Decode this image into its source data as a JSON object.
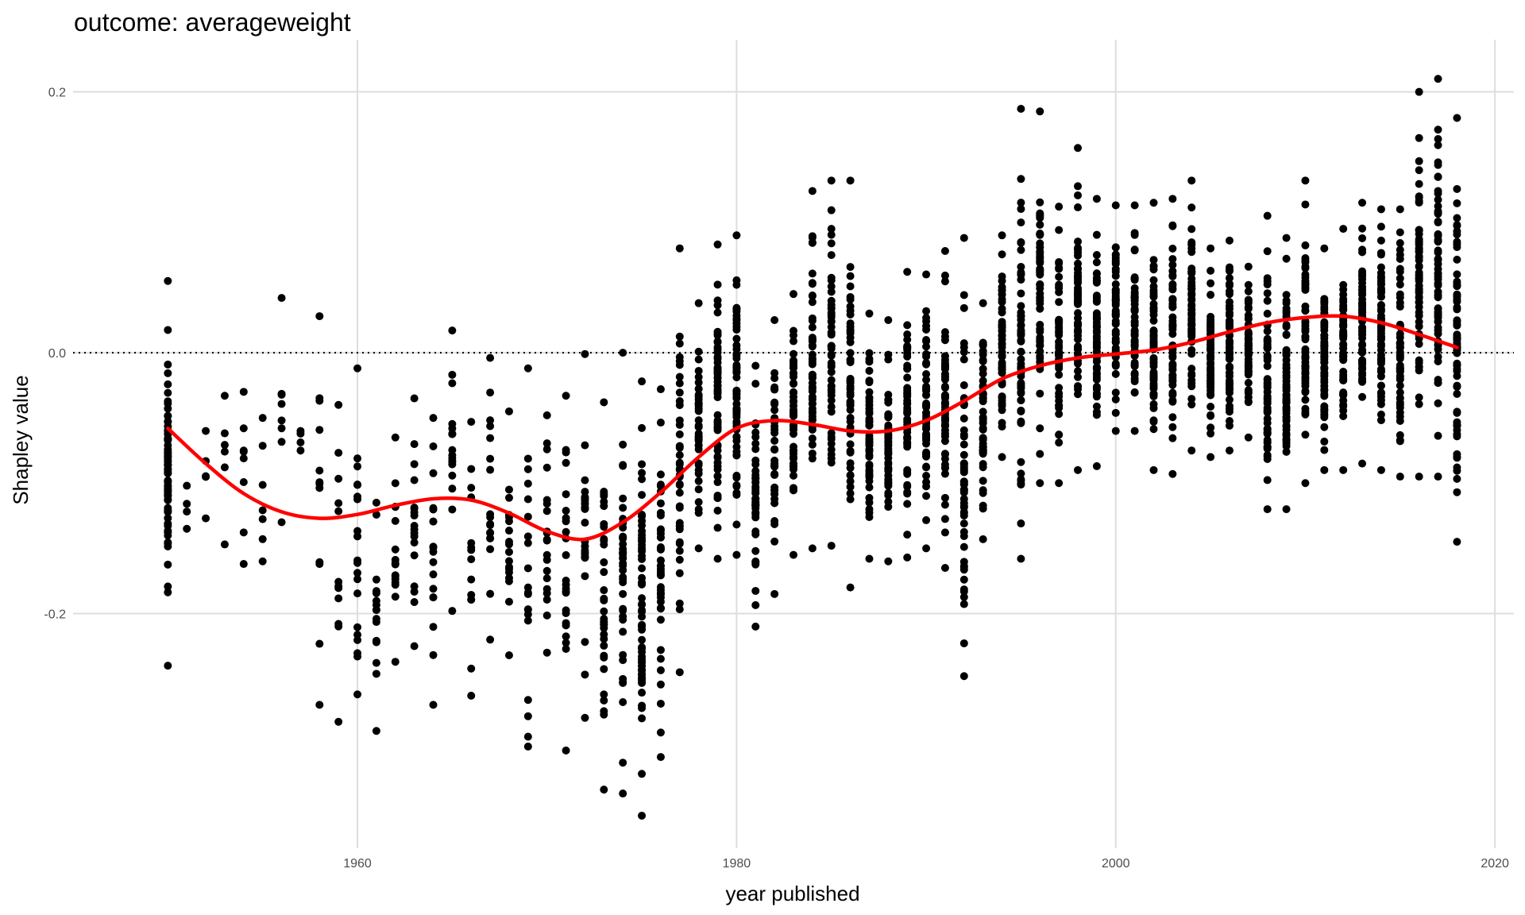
{
  "chart_data": {
    "type": "scatter",
    "title": "outcome: averageweight",
    "xlabel": "year published",
    "ylabel": "Shapley value",
    "xlim": [
      1945,
      2021
    ],
    "ylim": [
      -0.38,
      0.24
    ],
    "x_ticks": [
      1960,
      1980,
      2000,
      2020
    ],
    "x_tick_labels": [
      "1960",
      "1980",
      "2000",
      "2020"
    ],
    "y_ticks": [
      -0.2,
      0.0,
      0.2
    ],
    "y_tick_labels": [
      "-0.2",
      "0.0",
      "0.2"
    ],
    "grid": true,
    "reference_line": {
      "y": 0.0,
      "style": "dotted",
      "color": "#000000"
    },
    "colors": {
      "points": "#000000",
      "smooth": "#ff0000",
      "grid": "#dedede"
    },
    "series": [
      {
        "type": "scatter",
        "ranges_by_year": [
          [
            1950,
            -0.24,
            0.055,
            70
          ],
          [
            1951,
            -0.135,
            -0.102,
            2
          ],
          [
            1952,
            -0.127,
            -0.06,
            3
          ],
          [
            1953,
            -0.147,
            -0.033,
            4
          ],
          [
            1954,
            -0.162,
            -0.03,
            6
          ],
          [
            1955,
            -0.16,
            -0.05,
            5
          ],
          [
            1956,
            -0.13,
            0.042,
            6
          ],
          [
            1957,
            -0.075,
            -0.06,
            2
          ],
          [
            1958,
            -0.27,
            0.028,
            10
          ],
          [
            1959,
            -0.283,
            -0.04,
            10
          ],
          [
            1960,
            -0.262,
            -0.012,
            18
          ],
          [
            1961,
            -0.29,
            -0.115,
            14
          ],
          [
            1962,
            -0.237,
            -0.065,
            14
          ],
          [
            1963,
            -0.225,
            -0.035,
            16
          ],
          [
            1964,
            -0.27,
            -0.05,
            16
          ],
          [
            1965,
            -0.198,
            0.017,
            16
          ],
          [
            1966,
            -0.263,
            -0.053,
            12
          ],
          [
            1967,
            -0.22,
            -0.004,
            16
          ],
          [
            1968,
            -0.232,
            -0.045,
            16
          ],
          [
            1969,
            -0.302,
            -0.012,
            18
          ],
          [
            1970,
            -0.23,
            -0.048,
            18
          ],
          [
            1971,
            -0.305,
            -0.033,
            22
          ],
          [
            1972,
            -0.28,
            -0.001,
            24
          ],
          [
            1973,
            -0.335,
            -0.038,
            32
          ],
          [
            1974,
            -0.338,
            0.0,
            40
          ],
          [
            1975,
            -0.355,
            -0.022,
            60
          ],
          [
            1976,
            -0.31,
            -0.028,
            40
          ],
          [
            1977,
            -0.245,
            0.08,
            40
          ],
          [
            1978,
            -0.15,
            0.038,
            40
          ],
          [
            1979,
            -0.158,
            0.083,
            60
          ],
          [
            1980,
            -0.155,
            0.09,
            60
          ],
          [
            1981,
            -0.21,
            -0.01,
            45
          ],
          [
            1982,
            -0.185,
            0.025,
            40
          ],
          [
            1983,
            -0.155,
            0.045,
            50
          ],
          [
            1984,
            -0.15,
            0.124,
            50
          ],
          [
            1985,
            -0.148,
            0.132,
            50
          ],
          [
            1986,
            -0.18,
            0.132,
            50
          ],
          [
            1987,
            -0.158,
            0.03,
            50
          ],
          [
            1988,
            -0.16,
            0.025,
            50
          ],
          [
            1989,
            -0.157,
            0.062,
            50
          ],
          [
            1990,
            -0.15,
            0.06,
            55
          ],
          [
            1991,
            -0.165,
            0.078,
            55
          ],
          [
            1992,
            -0.248,
            0.088,
            55
          ],
          [
            1993,
            -0.143,
            0.038,
            55
          ],
          [
            1994,
            -0.08,
            0.09,
            55
          ],
          [
            1995,
            -0.158,
            0.187,
            60
          ],
          [
            1996,
            -0.1,
            0.185,
            60
          ],
          [
            1997,
            -0.1,
            0.112,
            55
          ],
          [
            1998,
            -0.09,
            0.157,
            55
          ],
          [
            1999,
            -0.087,
            0.118,
            55
          ],
          [
            2000,
            -0.06,
            0.113,
            55
          ],
          [
            2001,
            -0.06,
            0.113,
            55
          ],
          [
            2002,
            -0.09,
            0.115,
            55
          ],
          [
            2003,
            -0.093,
            0.118,
            55
          ],
          [
            2004,
            -0.075,
            0.132,
            60
          ],
          [
            2005,
            -0.08,
            0.08,
            60
          ],
          [
            2006,
            -0.075,
            0.086,
            60
          ],
          [
            2007,
            -0.065,
            0.066,
            60
          ],
          [
            2008,
            -0.12,
            0.105,
            60
          ],
          [
            2009,
            -0.12,
            0.088,
            60
          ],
          [
            2010,
            -0.1,
            0.132,
            60
          ],
          [
            2011,
            -0.09,
            0.08,
            60
          ],
          [
            2012,
            -0.09,
            0.095,
            60
          ],
          [
            2013,
            -0.085,
            0.115,
            60
          ],
          [
            2014,
            -0.09,
            0.11,
            60
          ],
          [
            2015,
            -0.095,
            0.11,
            60
          ],
          [
            2016,
            -0.095,
            0.2,
            60
          ],
          [
            2017,
            -0.095,
            0.21,
            60
          ],
          [
            2018,
            -0.145,
            0.18,
            70
          ]
        ],
        "color": "#000000"
      },
      {
        "type": "line",
        "x": [
          1950,
          1952,
          1954,
          1956,
          1958,
          1960,
          1962,
          1964,
          1966,
          1968,
          1970,
          1972,
          1974,
          1976,
          1978,
          1980,
          1982,
          1984,
          1986,
          1988,
          1990,
          1992,
          1994,
          1996,
          1998,
          2000,
          2002,
          2004,
          2006,
          2008,
          2010,
          2012,
          2014,
          2016,
          2018
        ],
        "values": [
          -0.058,
          -0.085,
          -0.108,
          -0.122,
          -0.127,
          -0.124,
          -0.117,
          -0.112,
          -0.113,
          -0.123,
          -0.137,
          -0.143,
          -0.13,
          -0.107,
          -0.08,
          -0.058,
          -0.052,
          -0.055,
          -0.06,
          -0.06,
          -0.052,
          -0.037,
          -0.02,
          -0.01,
          -0.004,
          -0.001,
          0.002,
          0.008,
          0.016,
          0.023,
          0.027,
          0.028,
          0.023,
          0.014,
          0.004
        ],
        "color": "#ff0000"
      }
    ]
  }
}
